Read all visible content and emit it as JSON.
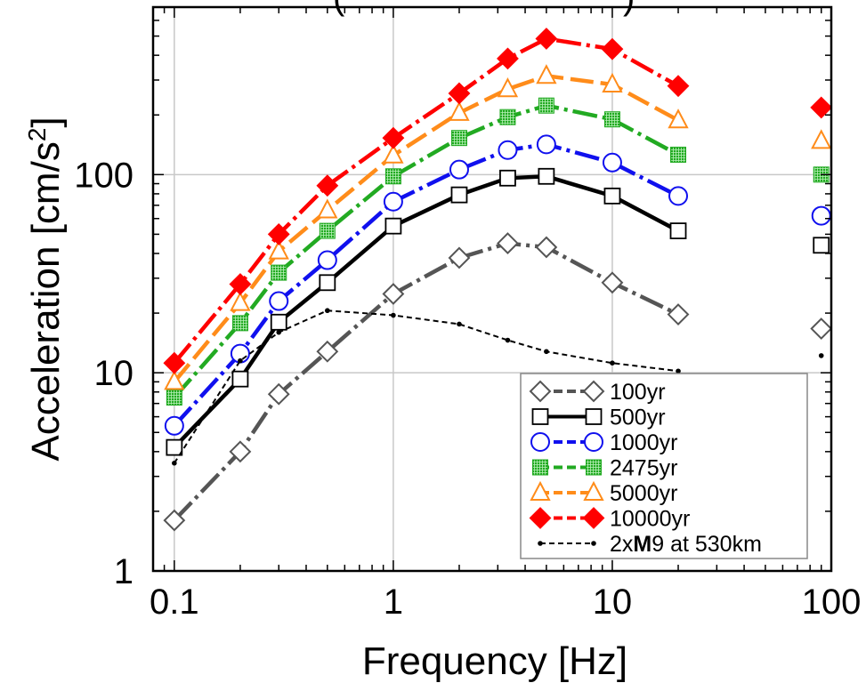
{
  "chart_data": {
    "type": "line",
    "title_fragment": "(",
    "title_fragment_right": ")",
    "xlabel": "Frequency [Hz]",
    "ylabel": "Acceleration [cm/s²]",
    "x_scale": "log",
    "y_scale": "log",
    "xlim": [
      0.08,
      100
    ],
    "ylim": [
      1,
      700
    ],
    "x_ticks": [
      {
        "value": 0.1,
        "label": "0.1"
      },
      {
        "value": 1,
        "label": "1"
      },
      {
        "value": 10,
        "label": "10"
      },
      {
        "value": 100,
        "label": "100"
      }
    ],
    "y_ticks": [
      {
        "value": 1,
        "label": "1"
      },
      {
        "value": 10,
        "label": "10"
      },
      {
        "value": 100,
        "label": "100"
      }
    ],
    "grid": true,
    "legend_position": "bottom-right",
    "series": [
      {
        "name": "100yr",
        "color": "#555555",
        "marker": "diamond-open",
        "line": "dashdot",
        "x": [
          0.1,
          0.2,
          0.3,
          0.5,
          1,
          2,
          3.33,
          5,
          10,
          20
        ],
        "y": [
          1.8,
          4.0,
          7.8,
          12.8,
          25,
          38,
          45,
          43,
          28.5,
          19.7
        ],
        "isolated": {
          "x": 90,
          "y": 16.7
        }
      },
      {
        "name": "500yr",
        "color": "#000000",
        "marker": "square-open",
        "line": "solid",
        "x": [
          0.1,
          0.2,
          0.3,
          0.5,
          1,
          2,
          3.33,
          5,
          10,
          20
        ],
        "y": [
          4.2,
          9.3,
          18,
          28.5,
          55,
          79,
          96,
          98,
          78,
          52
        ],
        "isolated": {
          "x": 90,
          "y": 44
        }
      },
      {
        "name": "1000yr",
        "color": "#1010ee",
        "marker": "circle-open",
        "line": "dashdot",
        "x": [
          0.1,
          0.2,
          0.3,
          0.5,
          1,
          2,
          3.33,
          5,
          10,
          20
        ],
        "y": [
          5.4,
          12.5,
          23,
          37,
          73,
          106,
          133,
          142,
          115,
          78
        ],
        "isolated": {
          "x": 90,
          "y": 62
        }
      },
      {
        "name": "2475yr",
        "color": "#22aa22",
        "marker": "square-hatched",
        "line": "dashdot",
        "x": [
          0.1,
          0.2,
          0.3,
          0.5,
          1,
          2,
          3.33,
          5,
          10,
          20
        ],
        "y": [
          7.5,
          17.8,
          32,
          52,
          98,
          153,
          195,
          223,
          190,
          126
        ],
        "isolated": {
          "x": 90,
          "y": 100
        }
      },
      {
        "name": "5000yr",
        "color": "#ff8c1a",
        "marker": "triangle-open",
        "line": "dashed",
        "x": [
          0.1,
          0.2,
          0.3,
          0.5,
          1,
          2,
          3.33,
          5,
          10,
          20
        ],
        "y": [
          9.0,
          22.5,
          41,
          66,
          125,
          205,
          270,
          315,
          285,
          188
        ],
        "isolated": {
          "x": 90,
          "y": 148
        }
      },
      {
        "name": "10000yr",
        "color": "#ff0000",
        "marker": "diamond-filled",
        "line": "dashdot",
        "x": [
          0.1,
          0.2,
          0.3,
          0.5,
          1,
          2,
          3.33,
          5,
          10,
          20
        ],
        "y": [
          11.2,
          28,
          50,
          88,
          153,
          257,
          385,
          485,
          430,
          280
        ],
        "isolated": {
          "x": 90,
          "y": 218
        }
      },
      {
        "name": "2xM9 at 530km",
        "name_parts": [
          "2x",
          "M",
          "9 at 530km"
        ],
        "color": "#000000",
        "marker": "dot",
        "line": "dashed-thin",
        "x": [
          0.1,
          0.2,
          0.3,
          0.5,
          1,
          2,
          3.33,
          5,
          10,
          20
        ],
        "y": [
          3.5,
          11.5,
          16,
          20.6,
          19.5,
          17.6,
          14.6,
          12.8,
          11.2,
          10.2
        ],
        "isolated": {
          "x": 90,
          "y": 12.2
        }
      }
    ]
  }
}
